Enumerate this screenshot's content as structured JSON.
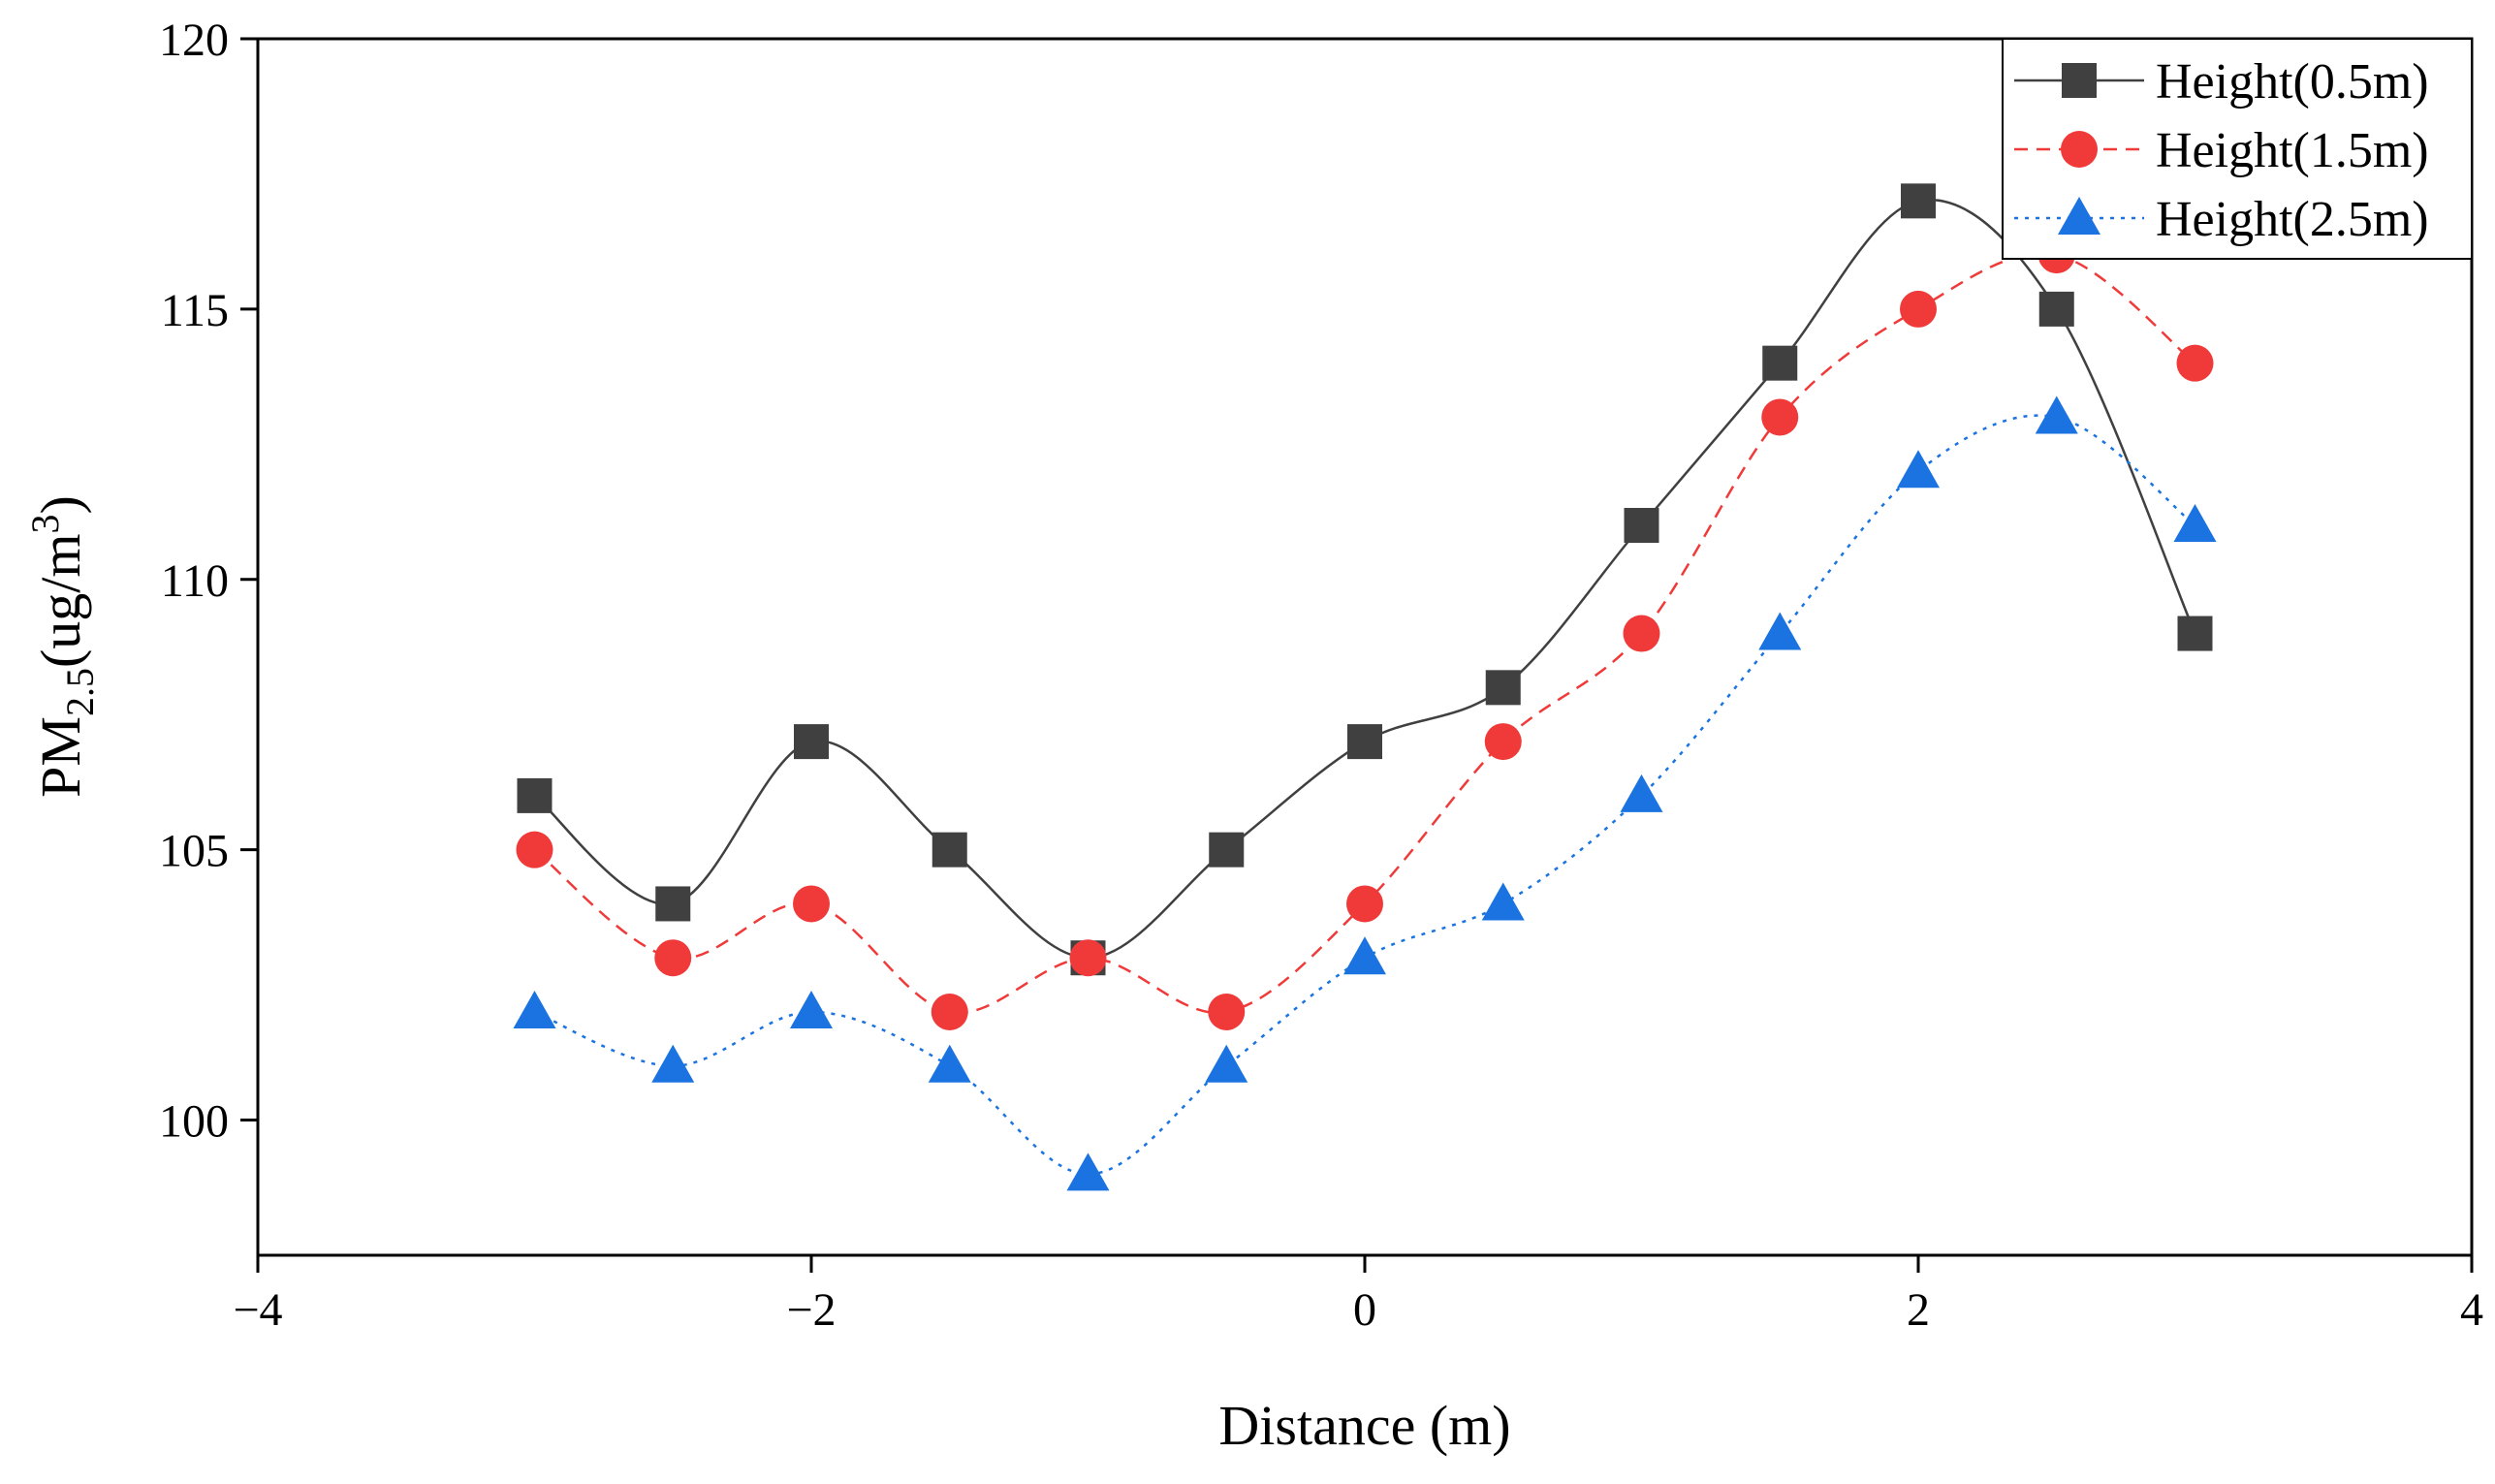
{
  "chart_data": {
    "type": "line",
    "title": "",
    "xlabel": "Distance (m)",
    "ylabel": {
      "prefix": "PM",
      "subscript": "2.5",
      "unit_open": "(ug/m",
      "superscript": "3",
      "unit_close": ")"
    },
    "xlim": [
      -4,
      4
    ],
    "ylim": [
      97.5,
      120
    ],
    "xticks": [
      -4,
      -2,
      0,
      2,
      4
    ],
    "xtick_labels": [
      "−4",
      "−2",
      "0",
      "2",
      "4"
    ],
    "yticks": [
      100,
      105,
      110,
      115,
      120
    ],
    "ytick_labels": [
      "100",
      "105",
      "110",
      "115",
      "120"
    ],
    "grid": false,
    "legend_position": "top-right",
    "x": [
      -3,
      -2.5,
      -2,
      -1.5,
      -1,
      -0.5,
      0,
      0.5,
      1,
      1.5,
      2,
      2.5,
      3
    ],
    "series": [
      {
        "name": "Height(0.5m)",
        "marker": "square",
        "color": "#404040",
        "line_style": "solid",
        "values": [
          106,
          104,
          107,
          105,
          103,
          105,
          107,
          108,
          111,
          114,
          117,
          115,
          109
        ]
      },
      {
        "name": "Height(1.5m)",
        "marker": "circle",
        "color": "#f03a3a",
        "line_style": "dashed",
        "values": [
          105,
          103,
          104,
          102,
          103,
          102,
          104,
          107,
          109,
          113,
          115,
          116,
          114
        ]
      },
      {
        "name": "Height(2.5m)",
        "marker": "triangle",
        "color": "#1a73e0",
        "line_style": "dotted",
        "values": [
          102,
          101,
          102,
          101,
          99,
          101,
          103,
          104,
          106,
          109,
          112,
          113,
          111
        ]
      }
    ]
  }
}
